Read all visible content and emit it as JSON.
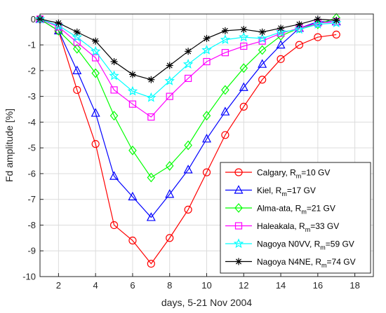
{
  "chart_data": {
    "type": "line",
    "title": "",
    "xlabel": "days, 5-21 Nov 2004",
    "ylabel": "Fd amplitude [%]",
    "xlim": [
      1,
      19
    ],
    "ylim": [
      -10,
      0.2
    ],
    "xticks": [
      2,
      4,
      6,
      8,
      10,
      12,
      14,
      16,
      18
    ],
    "yticks": [
      0,
      -1,
      -2,
      -3,
      -4,
      -5,
      -6,
      -7,
      -8,
      -9,
      -10
    ],
    "grid": true,
    "legend_position": "bottom-right",
    "x": [
      1,
      2,
      3,
      4,
      5,
      6,
      7,
      8,
      9,
      10,
      11,
      12,
      13,
      14,
      15,
      16,
      17
    ],
    "series": [
      {
        "name": "Calgary, R_m=10 GV",
        "legend_prefix": "Calgary, R",
        "legend_sub": "m",
        "legend_suffix": "=10 GV",
        "color": "#ff0000",
        "marker": "circle",
        "values": [
          0,
          -0.45,
          -2.75,
          -4.85,
          -8.0,
          -8.6,
          -9.5,
          -8.5,
          -7.4,
          -5.95,
          -4.5,
          -3.4,
          -2.35,
          -1.55,
          -1.0,
          -0.7,
          -0.6
        ]
      },
      {
        "name": "Kiel, R_m=17 GV",
        "legend_prefix": "Kiel, R",
        "legend_sub": "m",
        "legend_suffix": "=17 GV",
        "color": "#0000ff",
        "marker": "triangle",
        "values": [
          0,
          -0.45,
          -2.0,
          -3.65,
          -6.1,
          -6.9,
          -7.7,
          -6.8,
          -5.85,
          -4.65,
          -3.6,
          -2.65,
          -1.75,
          -1.0,
          -0.35,
          -0.1,
          -0.1
        ]
      },
      {
        "name": "Alma-ata, R_m=21 GV",
        "legend_prefix": "Alma-ata, R",
        "legend_sub": "m",
        "legend_suffix": "=21 GV",
        "color": "#00ff00",
        "marker": "diamond",
        "values": [
          0,
          -0.45,
          -1.15,
          -2.1,
          -3.75,
          -5.1,
          -6.15,
          -5.7,
          -4.9,
          -3.75,
          -2.75,
          -1.9,
          -1.2,
          -0.65,
          -0.35,
          -0.2,
          0.05
        ]
      },
      {
        "name": "Haleakala, R_m=33 GV",
        "legend_prefix": "Haleakala, R",
        "legend_sub": "m",
        "legend_suffix": "=33 GV",
        "color": "#ff00ff",
        "marker": "square",
        "values": [
          0,
          -0.3,
          -0.9,
          -1.5,
          -2.75,
          -3.3,
          -3.8,
          -3.0,
          -2.3,
          -1.65,
          -1.3,
          -1.05,
          -0.85,
          -0.55,
          -0.35,
          -0.15,
          -0.1
        ]
      },
      {
        "name": "Nagoya N0VV, R_m=59 GV",
        "legend_prefix": "Nagoya N0VV, R",
        "legend_sub": "m",
        "legend_suffix": "=59 GV",
        "color": "#00ffff",
        "marker": "star",
        "values": [
          0,
          -0.25,
          -0.7,
          -1.25,
          -2.2,
          -2.8,
          -3.05,
          -2.4,
          -1.75,
          -1.2,
          -0.8,
          -0.7,
          -0.75,
          -0.5,
          -0.4,
          -0.2,
          -0.15
        ]
      },
      {
        "name": "Nagoya N4NE, R_m=74 GV",
        "legend_prefix": "Nagoya N4NE, R",
        "legend_sub": "m",
        "legend_suffix": "=74 GV",
        "color": "#000000",
        "marker": "asterisk",
        "values": [
          0,
          -0.15,
          -0.5,
          -0.85,
          -1.65,
          -2.15,
          -2.35,
          -1.8,
          -1.25,
          -0.75,
          -0.45,
          -0.4,
          -0.5,
          -0.35,
          -0.2,
          0.0,
          -0.05
        ]
      }
    ]
  }
}
